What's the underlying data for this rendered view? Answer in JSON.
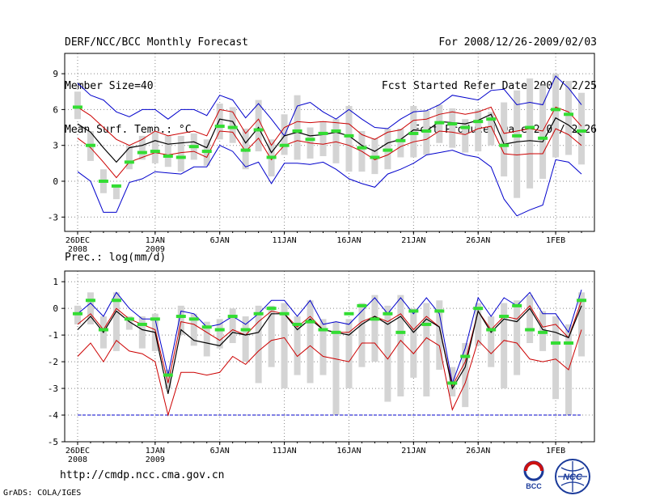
{
  "header": {
    "title": "DERF/NCC/BCC Monthly Forecast",
    "member_size": "Member Size=40",
    "variable": "Mean Surf. Temp.: °C",
    "period": "For 2008/12/26-2009/02/03",
    "fcst_started": "Fcst Started Refer Date 2008/12/25",
    "fcst_produced": "Fcst Produced Date 2008/12/26"
  },
  "footer": {
    "url": "http://cmdp.ncc.cma.gov.cn",
    "credit": "GrADS: COLA/IGES",
    "logo_bcc": "BCC",
    "logo_ncc": "NCC"
  },
  "colors": {
    "max_min": "#0000cc",
    "percentile": "#cc0000",
    "mean": "#000000",
    "box": "#d4d4d4",
    "obs": "#33dd33",
    "grid": "#888888",
    "ref": "#0000cc"
  },
  "chart_data": [
    {
      "type": "line",
      "title": "Mean Surf. Temp.: °C",
      "xlabel": "",
      "ylabel": "°C",
      "x": [
        1,
        2,
        3,
        4,
        5,
        6,
        7,
        8,
        9,
        10,
        11,
        12,
        13,
        14,
        15,
        16,
        17,
        18,
        19,
        20,
        21,
        22,
        23,
        24,
        25,
        26,
        27,
        28,
        29,
        30,
        31,
        32,
        33,
        34,
        35,
        36,
        37,
        38,
        39,
        40
      ],
      "xlim": [
        0,
        41
      ],
      "ylim": [
        -4.2,
        10.7
      ],
      "yticks": [
        -3,
        0,
        3,
        6,
        9
      ],
      "xticks": [
        {
          "x": 1,
          "label": "26DEC",
          "sub": "2008"
        },
        {
          "x": 7,
          "label": "1JAN",
          "sub": "2009"
        },
        {
          "x": 12,
          "label": "6JAN"
        },
        {
          "x": 17,
          "label": "11JAN"
        },
        {
          "x": 22,
          "label": "16JAN"
        },
        {
          "x": 27,
          "label": "21JAN"
        },
        {
          "x": 32,
          "label": "26JAN"
        },
        {
          "x": 38,
          "label": "1FEB"
        }
      ],
      "series": [
        {
          "name": "max",
          "values": [
            8.2,
            7.2,
            6.8,
            5.8,
            5.4,
            6.0,
            6.0,
            5.2,
            6.0,
            6.0,
            5.5,
            7.2,
            6.8,
            5.3,
            6.5,
            5.2,
            3.8,
            6.3,
            6.6,
            5.8,
            5.2,
            6.0,
            5.2,
            4.5,
            4.4,
            5.2,
            5.8,
            5.9,
            6.4,
            7.2,
            7.0,
            6.8,
            7.6,
            7.7,
            6.4,
            6.6,
            6.4,
            8.8,
            7.8,
            6.4
          ]
        },
        {
          "name": "p90",
          "values": [
            6.2,
            5.5,
            4.5,
            3.5,
            3.0,
            3.5,
            4.2,
            3.8,
            4.0,
            4.2,
            3.8,
            6.0,
            5.8,
            4.0,
            5.2,
            3.0,
            4.5,
            5.0,
            4.9,
            5.0,
            4.9,
            4.8,
            3.9,
            3.5,
            4.1,
            4.3,
            5.1,
            5.2,
            5.6,
            5.8,
            5.6,
            5.8,
            6.2,
            4.0,
            4.2,
            4.4,
            4.2,
            6.2,
            5.8,
            4.6
          ]
        },
        {
          "name": "mean",
          "values": [
            4.8,
            4.1,
            2.8,
            1.6,
            2.8,
            3.0,
            3.4,
            3.1,
            3.2,
            3.3,
            2.8,
            5.2,
            5.0,
            3.2,
            4.5,
            2.4,
            3.8,
            4.1,
            3.8,
            3.9,
            4.1,
            3.8,
            3.0,
            2.5,
            3.2,
            3.5,
            4.3,
            4.2,
            5.0,
            4.9,
            4.8,
            5.1,
            5.6,
            3.1,
            3.3,
            3.4,
            3.3,
            5.3,
            4.7,
            3.8
          ]
        },
        {
          "name": "p10",
          "values": [
            3.6,
            2.8,
            1.6,
            0.3,
            1.6,
            2.0,
            2.4,
            2.2,
            2.4,
            2.5,
            2.0,
            4.2,
            4.1,
            2.5,
            3.6,
            1.8,
            3.0,
            3.4,
            3.2,
            3.1,
            3.3,
            3.0,
            2.5,
            1.8,
            2.2,
            2.9,
            3.3,
            3.5,
            4.2,
            4.1,
            3.9,
            4.4,
            4.6,
            2.3,
            2.2,
            2.3,
            2.3,
            4.4,
            3.9,
            3.0
          ]
        },
        {
          "name": "min",
          "values": [
            0.8,
            0.0,
            -2.6,
            -2.6,
            -0.1,
            0.2,
            0.8,
            0.7,
            0.6,
            1.2,
            1.2,
            3.0,
            2.5,
            1.2,
            1.6,
            -0.2,
            1.5,
            1.5,
            1.4,
            1.6,
            1.0,
            0.2,
            -0.2,
            -0.5,
            0.6,
            1.0,
            1.5,
            2.2,
            2.4,
            2.6,
            2.2,
            2.0,
            1.2,
            -1.5,
            -2.9,
            -2.4,
            -2.0,
            1.8,
            1.6,
            0.6
          ]
        },
        {
          "name": "obs",
          "values": [
            6.2,
            3.0,
            0.0,
            -0.4,
            1.6,
            2.4,
            2.5,
            2.1,
            2.0,
            2.9,
            2.5,
            4.6,
            4.5,
            2.6,
            4.3,
            2.0,
            3.0,
            4.2,
            3.5,
            4.0,
            4.2,
            3.8,
            2.8,
            2.0,
            2.6,
            3.4,
            4.0,
            4.2,
            4.9,
            4.8,
            4.5,
            5.0,
            5.2,
            3.0,
            3.8,
            4.5,
            3.6,
            6.0,
            5.6,
            4.2
          ]
        },
        {
          "name": "box_hi",
          "values": [
            7.5,
            4.2,
            1.0,
            -0.5,
            3.0,
            3.8,
            4.2,
            3.8,
            3.8,
            4.0,
            3.5,
            6.5,
            6.2,
            4.4,
            6.8,
            3.5,
            5.6,
            7.2,
            4.5,
            5.0,
            5.2,
            6.3,
            4.2,
            3.6,
            4.4,
            4.4,
            6.3,
            5.9,
            6.4,
            6.1,
            5.2,
            6.0,
            5.8,
            6.6,
            7.6,
            8.6,
            8.0,
            9.0,
            8.4,
            7.4
          ]
        },
        {
          "name": "box_lo",
          "values": [
            5.2,
            1.7,
            -1.0,
            -1.5,
            1.0,
            1.8,
            1.5,
            1.2,
            0.8,
            1.8,
            1.3,
            3.5,
            3.2,
            1.0,
            2.5,
            0.4,
            2.2,
            1.8,
            1.9,
            2.1,
            1.5,
            0.8,
            0.8,
            0.6,
            1.0,
            2.0,
            2.0,
            2.2,
            3.2,
            2.8,
            2.4,
            2.5,
            3.0,
            0.4,
            -1.4,
            -0.6,
            0.2,
            2.0,
            2.2,
            1.4
          ]
        }
      ]
    },
    {
      "type": "line",
      "title": "Prec.: log(mm/d)",
      "xlabel": "",
      "ylabel": "log(mm/d)",
      "x": [
        1,
        2,
        3,
        4,
        5,
        6,
        7,
        8,
        9,
        10,
        11,
        12,
        13,
        14,
        15,
        16,
        17,
        18,
        19,
        20,
        21,
        22,
        23,
        24,
        25,
        26,
        27,
        28,
        29,
        30,
        31,
        32,
        33,
        34,
        35,
        36,
        37,
        38,
        39,
        40
      ],
      "xlim": [
        0,
        41
      ],
      "ylim": [
        -5,
        1.4
      ],
      "yticks": [
        -5,
        -4,
        -3,
        -2,
        -1,
        0,
        1
      ],
      "reference_line": -4,
      "xticks": [
        {
          "x": 1,
          "label": "26DEC",
          "sub": "2008"
        },
        {
          "x": 7,
          "label": "1JAN",
          "sub": "2009"
        },
        {
          "x": 12,
          "label": "6JAN"
        },
        {
          "x": 17,
          "label": "11JAN"
        },
        {
          "x": 22,
          "label": "16JAN"
        },
        {
          "x": 27,
          "label": "21JAN"
        },
        {
          "x": 32,
          "label": "26JAN"
        },
        {
          "x": 38,
          "label": "1FEB"
        }
      ],
      "series": [
        {
          "name": "max",
          "values": [
            -0.2,
            0.2,
            -0.3,
            0.6,
            0.0,
            -0.4,
            -0.4,
            -2.5,
            -0.1,
            -0.2,
            -0.7,
            -0.6,
            -0.3,
            -0.6,
            -0.2,
            0.3,
            0.3,
            -0.3,
            0.3,
            -0.6,
            -0.5,
            -0.6,
            -0.1,
            0.4,
            -0.2,
            0.4,
            -0.2,
            0.4,
            -0.2,
            -2.8,
            -1.5,
            0.4,
            -0.3,
            0.4,
            0.1,
            0.6,
            -0.2,
            -0.2,
            -0.9,
            0.7
          ]
        },
        {
          "name": "p90",
          "values": [
            -0.6,
            -0.2,
            -0.8,
            0.0,
            -0.4,
            -0.6,
            -0.8,
            -2.8,
            -0.5,
            -0.6,
            -0.9,
            -1.2,
            -0.8,
            -1.0,
            -0.5,
            -0.1,
            -0.2,
            -0.7,
            -0.3,
            -0.8,
            -0.9,
            -0.9,
            -0.5,
            -0.3,
            -0.5,
            -0.2,
            -0.8,
            -0.3,
            -0.7,
            -2.9,
            -2.0,
            -0.1,
            -0.8,
            -0.3,
            -0.4,
            0.1,
            -0.7,
            -0.6,
            -1.1,
            0.3
          ]
        },
        {
          "name": "mean",
          "values": [
            -0.8,
            -0.3,
            -0.9,
            -0.1,
            -0.5,
            -0.8,
            -0.9,
            -3.2,
            -0.8,
            -1.2,
            -1.3,
            -1.4,
            -0.9,
            -1.0,
            -0.9,
            -0.2,
            -0.2,
            -0.8,
            -0.4,
            -0.8,
            -0.9,
            -1.0,
            -0.6,
            -0.3,
            -0.6,
            -0.3,
            -0.9,
            -0.4,
            -0.7,
            -3.0,
            -2.2,
            -0.1,
            -0.9,
            -0.4,
            -0.5,
            0.0,
            -0.8,
            -0.9,
            -1.1,
            0.1
          ]
        },
        {
          "name": "p10",
          "values": [
            -1.8,
            -1.3,
            -2.0,
            -1.2,
            -1.6,
            -1.7,
            -2.0,
            -4.0,
            -2.4,
            -2.4,
            -2.5,
            -2.4,
            -1.8,
            -2.1,
            -1.6,
            -1.2,
            -1.1,
            -1.8,
            -1.4,
            -1.8,
            -1.9,
            -2.0,
            -1.3,
            -1.3,
            -1.9,
            -1.2,
            -1.7,
            -1.1,
            -1.4,
            -3.8,
            -2.8,
            -1.2,
            -1.7,
            -1.2,
            -1.3,
            -1.9,
            -2.0,
            -1.9,
            -2.3,
            -0.8
          ]
        },
        {
          "name": "obs",
          "values": [
            -0.2,
            0.3,
            -0.8,
            0.3,
            -0.4,
            -0.6,
            -0.4,
            -2.5,
            -0.3,
            -0.4,
            -0.7,
            -0.8,
            -0.3,
            -0.8,
            -0.2,
            0.0,
            -0.2,
            -0.6,
            -0.5,
            -0.8,
            -0.9,
            -0.2,
            0.1,
            -0.4,
            -0.2,
            -0.9,
            -0.1,
            -0.6,
            -0.1,
            -2.8,
            -1.8,
            0.0,
            -0.8,
            -0.3,
            0.1,
            -0.8,
            -0.9,
            -1.3,
            -1.3,
            0.3
          ]
        },
        {
          "name": "box_hi",
          "values": [
            0.1,
            0.6,
            -0.3,
            0.6,
            -0.3,
            -0.3,
            -0.2,
            -2.3,
            0.1,
            -0.2,
            -0.5,
            -0.4,
            0.0,
            -0.3,
            0.1,
            0.1,
            0.2,
            -0.3,
            0.3,
            -0.4,
            -0.5,
            -0.4,
            0.2,
            0.5,
            0.1,
            0.5,
            0.0,
            0.2,
            0.3,
            -2.2,
            -1.3,
            0.2,
            -0.3,
            0.2,
            0.3,
            0.5,
            -0.1,
            -0.3,
            -0.6,
            0.6
          ]
        },
        {
          "name": "box_lo",
          "values": [
            -0.6,
            -0.6,
            -1.5,
            -1.6,
            -0.8,
            -1.5,
            -1.6,
            -3.0,
            -1.0,
            -1.4,
            -1.8,
            -1.5,
            -1.3,
            -2.0,
            -2.8,
            -2.2,
            -3.0,
            -2.5,
            -2.8,
            -2.5,
            -4.0,
            -3.0,
            -2.2,
            -2.0,
            -3.5,
            -3.3,
            -2.6,
            -3.3,
            -2.3,
            -3.3,
            -3.7,
            -1.4,
            -2.2,
            -3.0,
            -2.5,
            -1.3,
            -1.6,
            -3.4,
            -4.0,
            -1.8
          ]
        }
      ]
    }
  ]
}
